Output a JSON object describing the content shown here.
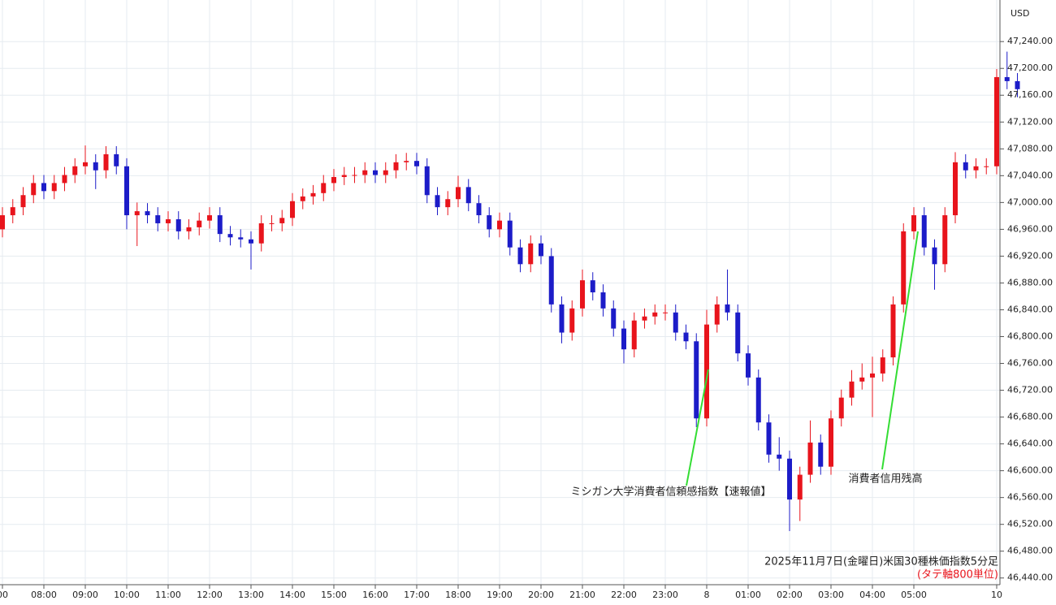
{
  "chart_data": {
    "type": "candlestick",
    "currency": "USD",
    "annotations": [
      "ミシガン大学消費者信頼感指数【速報値】",
      "消費者信用残高"
    ],
    "footnote": "2025年11月7日(金曜日)米国30種株価指数5分足",
    "footnote2": "(タテ軸800単位)",
    "up_color": "#e8141c",
    "down_color": "#1c1cc8",
    "grid": true,
    "categories": [
      "00",
      null,
      null,
      null,
      "08:00",
      null,
      null,
      null,
      "09:00",
      null,
      null,
      null,
      "10:00",
      null,
      null,
      null,
      "11:00",
      null,
      null,
      null,
      "12:00",
      null,
      null,
      null,
      "13:00",
      null,
      null,
      null,
      "14:00",
      null,
      null,
      null,
      "15:00",
      null,
      null,
      null,
      "16:00",
      null,
      null,
      null,
      "17:00",
      null,
      null,
      null,
      "18:00",
      null,
      null,
      null,
      "19:00",
      null,
      null,
      null,
      "20:00",
      null,
      null,
      null,
      "21:00",
      null,
      null,
      null,
      "22:00",
      null,
      null,
      null,
      "23:00",
      null,
      null,
      null,
      "8",
      null,
      null,
      null,
      "01:00",
      null,
      null,
      null,
      "02:00",
      null,
      null,
      null,
      "03:00",
      null,
      null,
      null,
      "04:00",
      null,
      null,
      null,
      "05:00",
      null,
      null,
      null,
      null,
      null,
      null,
      null,
      "10",
      null,
      null
    ],
    "open": [
      46960,
      46981,
      46993,
      47011,
      47029,
      47017,
      47029,
      47041,
      47054,
      47060,
      47048,
      47072,
      47054,
      46981,
      46987,
      46981,
      46969,
      46975,
      46957,
      46963,
      46973,
      46981,
      46953,
      46948,
      46945,
      46939,
      46969,
      46969,
      46977,
      47002,
      47009,
      47014,
      47029,
      47038,
      47041,
      47041,
      47048,
      47041,
      47048,
      47060,
      47062,
      47054,
      47011,
      46993,
      47005,
      47023,
      46999,
      46981,
      46960,
      46973,
      46933,
      46908,
      46939,
      46920,
      46848,
      46806,
      46842,
      46884,
      46866,
      46842,
      46812,
      46781,
      46824,
      46830,
      46836,
      46836,
      46806,
      46793,
      46678,
      46818,
      46848,
      46836,
      46775,
      46739,
      46672,
      46624,
      46618,
      46557,
      46594,
      46642,
      46606,
      46678,
      46709,
      46733,
      46739,
      46745,
      46769,
      46848,
      46957,
      46981,
      46933,
      46908,
      46981,
      47060,
      47048,
      47054,
      47054,
      47187,
      47181
    ],
    "high": [
      46993,
      47005,
      47023,
      47041,
      47041,
      47041,
      47053,
      47066,
      47085,
      47072,
      47084,
      47084,
      47066,
      47000,
      46999,
      46993,
      46987,
      46987,
      46975,
      46985,
      46993,
      46993,
      46965,
      46960,
      46957,
      46981,
      46981,
      46989,
      47014,
      47021,
      47026,
      47041,
      47050,
      47053,
      47053,
      47060,
      47060,
      47060,
      47072,
      47074,
      47074,
      47066,
      47023,
      47017,
      47040,
      47035,
      47011,
      46993,
      46985,
      46985,
      46945,
      46951,
      46951,
      46932,
      46860,
      46854,
      46900,
      46896,
      46878,
      46854,
      46824,
      46836,
      46842,
      46848,
      46848,
      46848,
      46818,
      46805,
      46840,
      46860,
      46900,
      46848,
      46787,
      46751,
      46684,
      46650,
      46630,
      46606,
      46675,
      46654,
      46690,
      46721,
      46750,
      46760,
      46770,
      46781,
      46860,
      46969,
      46993,
      46993,
      46945,
      46993,
      47075,
      47072,
      47066,
      47066,
      47199,
      47225,
      47193
    ],
    "low": [
      46948,
      46969,
      46981,
      46999,
      47005,
      47005,
      47017,
      47029,
      47042,
      47020,
      47036,
      47042,
      46960,
      46935,
      46969,
      46957,
      46957,
      46945,
      46945,
      46951,
      46961,
      46941,
      46936,
      46933,
      46900,
      46927,
      46957,
      46957,
      46965,
      46990,
      46997,
      47002,
      47017,
      47026,
      47029,
      47029,
      47029,
      47029,
      47036,
      47048,
      47042,
      46999,
      46981,
      46981,
      46993,
      46987,
      46969,
      46948,
      46948,
      46921,
      46896,
      46896,
      46908,
      46836,
      46790,
      46794,
      46830,
      46854,
      46830,
      46800,
      46760,
      46769,
      46812,
      46818,
      46824,
      46794,
      46781,
      46665,
      46666,
      46806,
      46824,
      46763,
      46727,
      46660,
      46612,
      46600,
      46510,
      46525,
      46582,
      46594,
      46594,
      46666,
      46697,
      46721,
      46680,
      46733,
      46757,
      46836,
      46945,
      46921,
      46870,
      46896,
      46969,
      47036,
      47036,
      47042,
      47042,
      47169,
      47157
    ],
    "close": [
      46981,
      46993,
      47011,
      47029,
      47017,
      47029,
      47041,
      47054,
      47060,
      47048,
      47072,
      47054,
      46981,
      46987,
      46981,
      46969,
      46975,
      46957,
      46963,
      46973,
      46981,
      46953,
      46948,
      46945,
      46939,
      46969,
      46969,
      46977,
      47002,
      47009,
      47014,
      47029,
      47038,
      47041,
      47041,
      47048,
      47041,
      47048,
      47060,
      47062,
      47054,
      47011,
      46993,
      47005,
      47023,
      46999,
      46981,
      46960,
      46973,
      46933,
      46908,
      46939,
      46920,
      46848,
      46806,
      46842,
      46884,
      46866,
      46842,
      46812,
      46781,
      46824,
      46830,
      46836,
      46836,
      46806,
      46793,
      46678,
      46818,
      46848,
      46836,
      46775,
      46739,
      46672,
      46624,
      46618,
      46557,
      46594,
      46642,
      46606,
      46678,
      46709,
      46733,
      46739,
      46745,
      46769,
      46848,
      46957,
      46981,
      46933,
      46908,
      46981,
      47060,
      47048,
      47054,
      47054,
      47187,
      47181,
      47169
    ],
    "ylim": [
      46430,
      47302
    ],
    "yticks": [
      {
        "value": 46440,
        "label": "46,440.00"
      },
      {
        "value": 46480,
        "label": "46,480.00"
      },
      {
        "value": 46520,
        "label": "46,520.00"
      },
      {
        "value": 46560,
        "label": "46,560.00"
      },
      {
        "value": 46600,
        "label": "46,600.00"
      },
      {
        "value": 46640,
        "label": "46,640.00"
      },
      {
        "value": 46680,
        "label": "46,680.00"
      },
      {
        "value": 46720,
        "label": "46,720.00"
      },
      {
        "value": 46760,
        "label": "46,760.00"
      },
      {
        "value": 46800,
        "label": "46,800.00"
      },
      {
        "value": 46840,
        "label": "46,840.00"
      },
      {
        "value": 46880,
        "label": "46,880.00"
      },
      {
        "value": 46920,
        "label": "46,920.00"
      },
      {
        "value": 46960,
        "label": "46,960.00"
      },
      {
        "value": 47000,
        "label": "47,000.00"
      },
      {
        "value": 47040,
        "label": "47,040.00"
      },
      {
        "value": 47080,
        "label": "47,080.00"
      },
      {
        "value": 47120,
        "label": "47,120.00"
      },
      {
        "value": 47160,
        "label": "47,160.00"
      },
      {
        "value": 47200,
        "label": "47,200.00"
      },
      {
        "value": 47240,
        "label": "47,240.00"
      }
    ]
  }
}
